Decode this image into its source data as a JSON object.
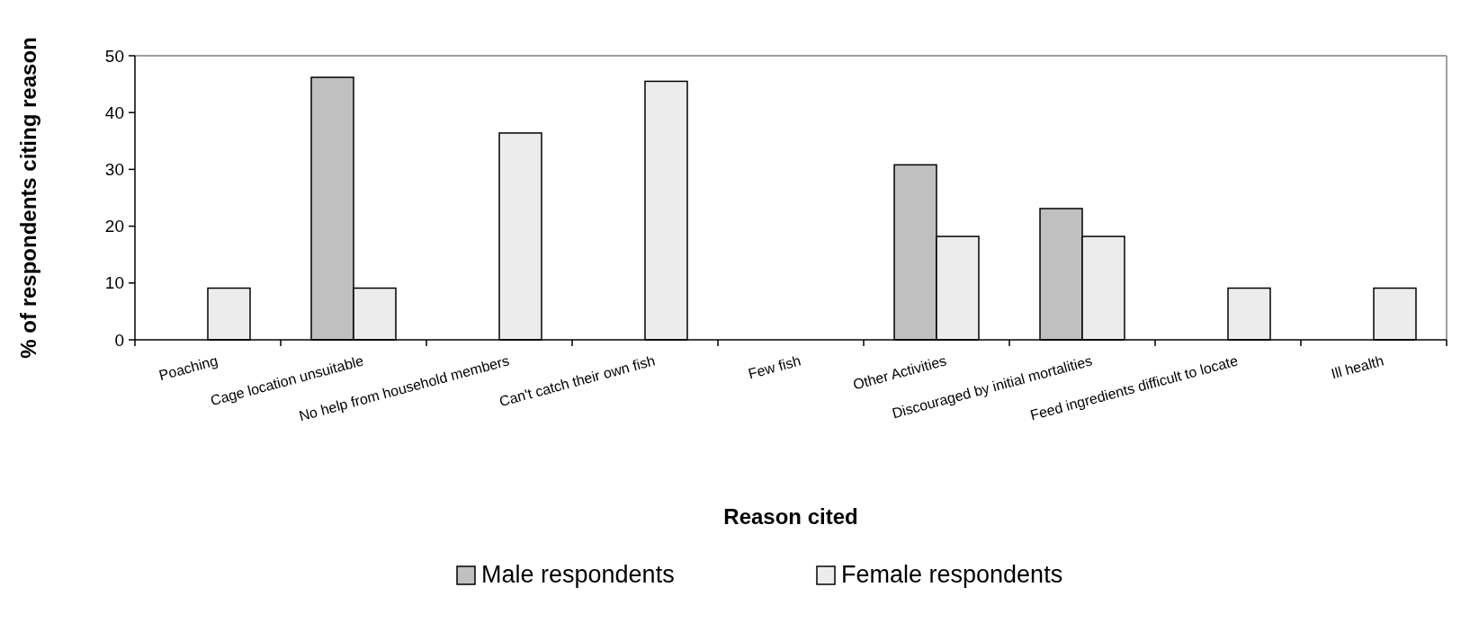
{
  "chart_data": {
    "type": "bar",
    "xlabel": "Reason cited",
    "ylabel": "% of respondents citing reason",
    "categories": [
      "Poaching",
      "Cage location unsuitable",
      "No help from household members",
      "Can't catch their own fish",
      "Few fish",
      "Other Activities",
      "Discouraged by initial mortalities",
      "Feed ingredients difficult to locate",
      "Ill health"
    ],
    "series": [
      {
        "name": "Male respondents",
        "color": "#c0c0c0",
        "values": [
          0,
          46.2,
          0,
          0,
          0,
          30.8,
          23.1,
          0,
          0
        ]
      },
      {
        "name": "Female respondents",
        "color": "#ececec",
        "values": [
          9.1,
          9.1,
          36.4,
          45.5,
          0,
          18.2,
          18.2,
          9.1,
          9.1
        ]
      }
    ],
    "ylim": [
      0,
      50
    ],
    "yticks": [
      0,
      10,
      20,
      30,
      40,
      50
    ],
    "legend": "bottom"
  }
}
